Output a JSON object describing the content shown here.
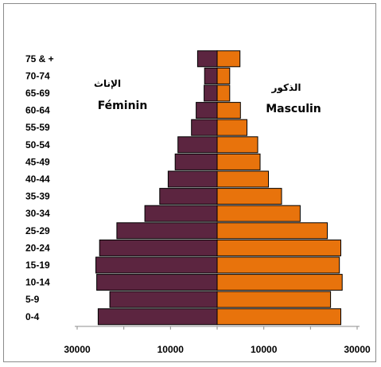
{
  "chart_data": {
    "type": "bar",
    "orientation": "horizontal-population-pyramid",
    "categories": [
      "0-4",
      "5-9",
      "10-14",
      "15-19",
      "20-24",
      "25-29",
      "30-34",
      "35-39",
      "40-44",
      "45-49",
      "50-54",
      "55-59",
      "60-64",
      "65-69",
      "70-74",
      "75 & +"
    ],
    "series": [
      {
        "name": "Féminin",
        "name_ar": "الإناث",
        "side": "left",
        "color": "#5c2540",
        "values": [
          25500,
          23000,
          25800,
          26000,
          25200,
          21500,
          15500,
          12300,
          10500,
          9000,
          8400,
          5500,
          4500,
          2800,
          2700,
          4200
        ]
      },
      {
        "name": "Masculin",
        "name_ar": "الذكور",
        "side": "right",
        "color": "#e8730c",
        "values": [
          26500,
          24300,
          26800,
          26200,
          26500,
          23600,
          17800,
          13800,
          11000,
          9200,
          8700,
          6400,
          5000,
          2700,
          2700,
          4900
        ]
      }
    ],
    "xtick_labels": [
      "30000",
      "10000",
      "10000",
      "30000"
    ],
    "xtick_values": [
      -30000,
      -10000,
      10000,
      30000
    ],
    "xlim": [
      -30000,
      30000
    ],
    "xlabel": "",
    "ylabel": "",
    "title": "",
    "grid": false,
    "legend_placement": "inside-top"
  }
}
